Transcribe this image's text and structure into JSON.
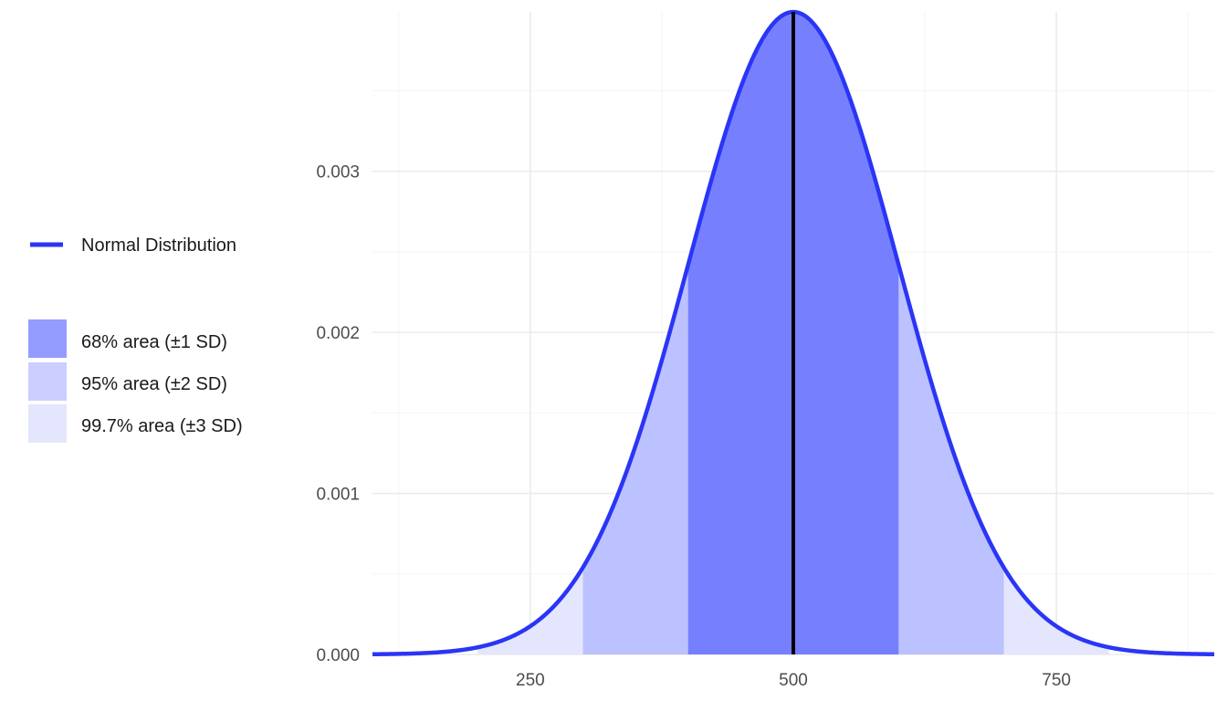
{
  "chart_data": {
    "type": "area",
    "title": "",
    "xlabel": "",
    "ylabel": "",
    "distribution": {
      "mean": 500,
      "sd": 100
    },
    "xlim": [
      100,
      900
    ],
    "ylim": [
      0,
      0.00399
    ],
    "x_ticks": [
      250,
      500,
      750
    ],
    "x_tick_labels": [
      "250",
      "500",
      "750"
    ],
    "y_ticks": [
      0,
      0.001,
      0.002,
      0.003
    ],
    "y_tick_labels": [
      "0.000",
      "0.001",
      "0.002",
      "0.003"
    ],
    "grid": true,
    "legend_position": "left",
    "line": {
      "name": "Normal Distribution",
      "color": "#2b35f5"
    },
    "mean_line": {
      "x": 500,
      "color": "#000000"
    },
    "areas": [
      {
        "name": "99.7% area (±3 SD)",
        "range": [
          200,
          800
        ],
        "fill": "#e4e6fd"
      },
      {
        "name": "95% area (±2 SD)",
        "range": [
          300,
          700
        ],
        "fill": "#bcc1ff"
      },
      {
        "name": "68% area (±1 SD)",
        "range": [
          400,
          600
        ],
        "fill": "#7680ff"
      }
    ],
    "legend": {
      "line_label": "Normal Distribution",
      "fills": [
        {
          "label": "68% area (±1 SD)",
          "color": "#959cff"
        },
        {
          "label": "95% area (±2 SD)",
          "color": "#cbceff"
        },
        {
          "label": "99.7% area (±3 SD)",
          "color": "#e4e6fd"
        }
      ]
    }
  }
}
